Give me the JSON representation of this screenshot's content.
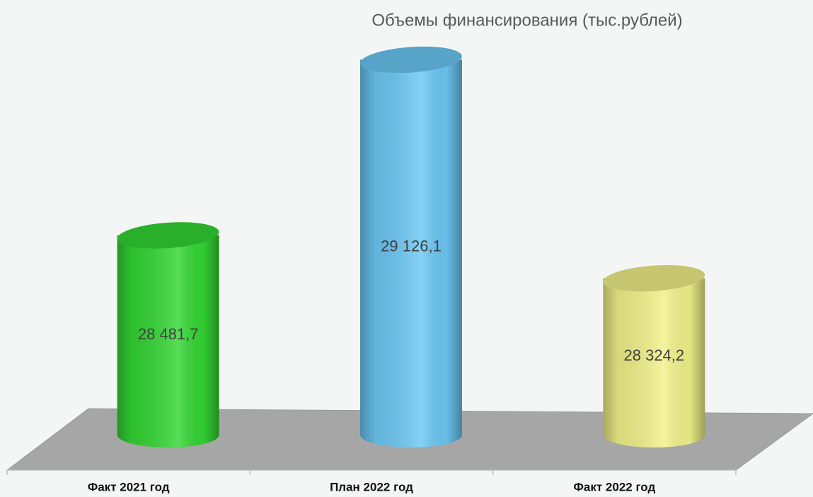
{
  "chart_data": {
    "type": "cylinder-bar",
    "title": "Объемы финансирования (тыс.рублей)",
    "categories": [
      "Факт 2021 год",
      "План 2022 год",
      "Факт 2022 год"
    ],
    "values": [
      28481.7,
      29126.1,
      28324.2
    ],
    "value_labels": [
      "28 481,7",
      "29 126,1",
      "28 324,2"
    ],
    "colors": [
      "#33d633",
      "#6cc8f4",
      "#f2f28a"
    ],
    "ylim": [
      27750,
      29200
    ]
  }
}
